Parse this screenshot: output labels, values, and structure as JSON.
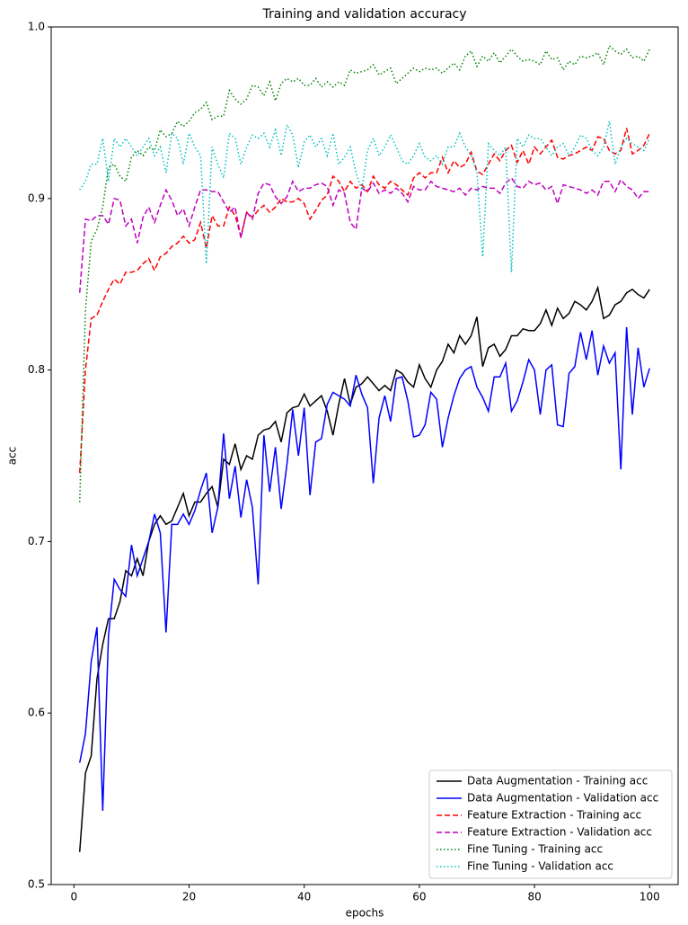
{
  "chart_data": {
    "type": "line",
    "title": "Training and validation accuracy",
    "x_label": "epochs",
    "y_label": "acc",
    "xlim": [
      -3.95,
      104.95
    ],
    "xticks": [
      0,
      20,
      40,
      60,
      80,
      100
    ],
    "ylim": [
      0.5,
      1.0
    ],
    "yticks": [
      0.5,
      0.6,
      0.7,
      0.8,
      0.9,
      {
        "value": 1.0,
        "label": "1.0"
      }
    ],
    "grid": false,
    "legend": "lower right",
    "x": [
      1,
      2,
      3,
      4,
      5,
      6,
      7,
      8,
      9,
      10,
      11,
      12,
      13,
      14,
      15,
      16,
      17,
      18,
      19,
      20,
      21,
      22,
      23,
      24,
      25,
      26,
      27,
      28,
      29,
      30,
      31,
      32,
      33,
      34,
      35,
      36,
      37,
      38,
      39,
      40,
      41,
      42,
      43,
      44,
      45,
      46,
      47,
      48,
      49,
      50,
      51,
      52,
      53,
      54,
      55,
      56,
      57,
      58,
      59,
      60,
      61,
      62,
      63,
      64,
      65,
      66,
      67,
      68,
      69,
      70,
      71,
      72,
      73,
      74,
      75,
      76,
      77,
      78,
      79,
      80,
      81,
      82,
      83,
      84,
      85,
      86,
      87,
      88,
      89,
      90,
      91,
      92,
      93,
      94,
      95,
      96,
      97,
      98,
      99,
      100
    ],
    "series": [
      {
        "name": "Data Augmentation - Training acc",
        "color": "#000000",
        "linestyle": "solid",
        "values": [
          0.519,
          0.565,
          0.575,
          0.62,
          0.64,
          0.655,
          0.655,
          0.665,
          0.683,
          0.68,
          0.69,
          0.68,
          0.7,
          0.71,
          0.715,
          0.71,
          0.712,
          0.72,
          0.728,
          0.715,
          0.723,
          0.723,
          0.728,
          0.732,
          0.72,
          0.748,
          0.745,
          0.757,
          0.742,
          0.75,
          0.748,
          0.762,
          0.765,
          0.766,
          0.77,
          0.758,
          0.775,
          0.778,
          0.779,
          0.786,
          0.779,
          0.782,
          0.785,
          0.776,
          0.762,
          0.78,
          0.795,
          0.78,
          0.79,
          0.792,
          0.796,
          0.792,
          0.788,
          0.791,
          0.788,
          0.8,
          0.798,
          0.793,
          0.79,
          0.803,
          0.795,
          0.79,
          0.8,
          0.805,
          0.815,
          0.81,
          0.82,
          0.815,
          0.82,
          0.831,
          0.802,
          0.813,
          0.815,
          0.808,
          0.812,
          0.82,
          0.82,
          0.824,
          0.823,
          0.823,
          0.827,
          0.835,
          0.826,
          0.836,
          0.83,
          0.833,
          0.84,
          0.838,
          0.835,
          0.84,
          0.848,
          0.83,
          0.832,
          0.838,
          0.84,
          0.845,
          0.847,
          0.844,
          0.842,
          0.847
        ]
      },
      {
        "name": "Data Augmentation - Validation acc",
        "color": "#0000ff",
        "linestyle": "solid",
        "values": [
          0.571,
          0.588,
          0.63,
          0.65,
          0.543,
          0.645,
          0.678,
          0.672,
          0.668,
          0.698,
          0.68,
          0.69,
          0.7,
          0.716,
          0.705,
          0.647,
          0.71,
          0.71,
          0.716,
          0.71,
          0.718,
          0.73,
          0.74,
          0.705,
          0.72,
          0.763,
          0.725,
          0.744,
          0.714,
          0.736,
          0.72,
          0.675,
          0.762,
          0.729,
          0.755,
          0.719,
          0.745,
          0.777,
          0.75,
          0.778,
          0.727,
          0.758,
          0.76,
          0.78,
          0.787,
          0.785,
          0.783,
          0.779,
          0.797,
          0.786,
          0.778,
          0.734,
          0.772,
          0.785,
          0.77,
          0.795,
          0.796,
          0.782,
          0.761,
          0.762,
          0.768,
          0.787,
          0.783,
          0.755,
          0.772,
          0.785,
          0.795,
          0.8,
          0.802,
          0.79,
          0.784,
          0.776,
          0.796,
          0.796,
          0.804,
          0.776,
          0.782,
          0.793,
          0.806,
          0.8,
          0.774,
          0.8,
          0.803,
          0.768,
          0.767,
          0.798,
          0.802,
          0.822,
          0.806,
          0.823,
          0.797,
          0.814,
          0.804,
          0.81,
          0.742,
          0.825,
          0.774,
          0.813,
          0.79,
          0.801
        ]
      },
      {
        "name": "Feature Extraction - Training acc",
        "color": "#ff0000",
        "linestyle": "dashed",
        "values": [
          0.74,
          0.8,
          0.83,
          0.832,
          0.84,
          0.847,
          0.853,
          0.85,
          0.857,
          0.857,
          0.858,
          0.862,
          0.865,
          0.858,
          0.866,
          0.868,
          0.872,
          0.874,
          0.878,
          0.874,
          0.876,
          0.886,
          0.871,
          0.89,
          0.884,
          0.884,
          0.895,
          0.89,
          0.878,
          0.892,
          0.889,
          0.893,
          0.896,
          0.892,
          0.895,
          0.9,
          0.898,
          0.898,
          0.9,
          0.897,
          0.888,
          0.893,
          0.899,
          0.902,
          0.913,
          0.91,
          0.904,
          0.91,
          0.906,
          0.908,
          0.904,
          0.913,
          0.908,
          0.906,
          0.91,
          0.908,
          0.905,
          0.902,
          0.912,
          0.915,
          0.912,
          0.915,
          0.915,
          0.924,
          0.915,
          0.922,
          0.918,
          0.92,
          0.927,
          0.916,
          0.914,
          0.92,
          0.926,
          0.922,
          0.928,
          0.931,
          0.921,
          0.928,
          0.92,
          0.93,
          0.926,
          0.93,
          0.934,
          0.924,
          0.923,
          0.925,
          0.926,
          0.928,
          0.93,
          0.928,
          0.936,
          0.935,
          0.928,
          0.926,
          0.928,
          0.941,
          0.926,
          0.928,
          0.931,
          0.938
        ]
      },
      {
        "name": "Feature Extraction - Validation acc",
        "color": "#bf00bf",
        "linestyle": "dashed",
        "values": [
          0.845,
          0.888,
          0.887,
          0.89,
          0.89,
          0.885,
          0.9,
          0.899,
          0.884,
          0.888,
          0.874,
          0.889,
          0.895,
          0.886,
          0.896,
          0.905,
          0.899,
          0.89,
          0.894,
          0.884,
          0.895,
          0.905,
          0.905,
          0.904,
          0.904,
          0.898,
          0.892,
          0.895,
          0.877,
          0.892,
          0.888,
          0.903,
          0.909,
          0.908,
          0.901,
          0.897,
          0.901,
          0.91,
          0.904,
          0.906,
          0.906,
          0.908,
          0.909,
          0.907,
          0.896,
          0.905,
          0.903,
          0.886,
          0.882,
          0.906,
          0.904,
          0.909,
          0.903,
          0.905,
          0.903,
          0.906,
          0.903,
          0.898,
          0.907,
          0.905,
          0.905,
          0.91,
          0.907,
          0.906,
          0.905,
          0.904,
          0.906,
          0.902,
          0.906,
          0.905,
          0.907,
          0.906,
          0.906,
          0.903,
          0.909,
          0.912,
          0.907,
          0.906,
          0.91,
          0.908,
          0.909,
          0.905,
          0.907,
          0.897,
          0.908,
          0.907,
          0.906,
          0.905,
          0.903,
          0.905,
          0.902,
          0.91,
          0.91,
          0.904,
          0.911,
          0.907,
          0.905,
          0.9,
          0.904,
          0.904
        ]
      },
      {
        "name": "Fine Tuning - Training acc",
        "color": "#008000",
        "linestyle": "dotted",
        "values": [
          0.723,
          0.835,
          0.875,
          0.882,
          0.895,
          0.918,
          0.92,
          0.913,
          0.91,
          0.924,
          0.928,
          0.925,
          0.93,
          0.928,
          0.94,
          0.936,
          0.938,
          0.945,
          0.942,
          0.945,
          0.95,
          0.952,
          0.956,
          0.946,
          0.948,
          0.948,
          0.963,
          0.958,
          0.955,
          0.958,
          0.966,
          0.965,
          0.96,
          0.968,
          0.957,
          0.967,
          0.97,
          0.968,
          0.97,
          0.966,
          0.966,
          0.97,
          0.965,
          0.968,
          0.965,
          0.968,
          0.966,
          0.975,
          0.973,
          0.974,
          0.975,
          0.978,
          0.972,
          0.974,
          0.976,
          0.967,
          0.97,
          0.973,
          0.976,
          0.974,
          0.976,
          0.975,
          0.976,
          0.973,
          0.976,
          0.979,
          0.975,
          0.983,
          0.986,
          0.977,
          0.983,
          0.98,
          0.985,
          0.979,
          0.983,
          0.987,
          0.983,
          0.98,
          0.981,
          0.98,
          0.978,
          0.986,
          0.981,
          0.982,
          0.975,
          0.98,
          0.978,
          0.983,
          0.982,
          0.983,
          0.985,
          0.978,
          0.989,
          0.986,
          0.984,
          0.987,
          0.982,
          0.983,
          0.98,
          0.987
        ]
      },
      {
        "name": "Fine Tuning - Validation acc",
        "color": "#00bfbf",
        "linestyle": "dotted",
        "values": [
          0.905,
          0.91,
          0.92,
          0.92,
          0.935,
          0.91,
          0.935,
          0.93,
          0.935,
          0.93,
          0.925,
          0.93,
          0.935,
          0.925,
          0.93,
          0.915,
          0.938,
          0.935,
          0.92,
          0.938,
          0.93,
          0.925,
          0.862,
          0.93,
          0.92,
          0.912,
          0.938,
          0.935,
          0.92,
          0.93,
          0.937,
          0.935,
          0.938,
          0.93,
          0.94,
          0.925,
          0.943,
          0.937,
          0.918,
          0.933,
          0.937,
          0.93,
          0.935,
          0.925,
          0.938,
          0.92,
          0.924,
          0.93,
          0.915,
          0.905,
          0.928,
          0.935,
          0.925,
          0.93,
          0.937,
          0.93,
          0.922,
          0.92,
          0.925,
          0.932,
          0.924,
          0.922,
          0.925,
          0.92,
          0.93,
          0.93,
          0.938,
          0.93,
          0.925,
          0.915,
          0.866,
          0.932,
          0.928,
          0.925,
          0.93,
          0.857,
          0.935,
          0.93,
          0.937,
          0.935,
          0.935,
          0.93,
          0.925,
          0.93,
          0.932,
          0.925,
          0.93,
          0.937,
          0.935,
          0.928,
          0.925,
          0.93,
          0.945,
          0.92,
          0.93,
          0.935,
          0.932,
          0.93,
          0.928,
          0.935
        ]
      }
    ]
  }
}
